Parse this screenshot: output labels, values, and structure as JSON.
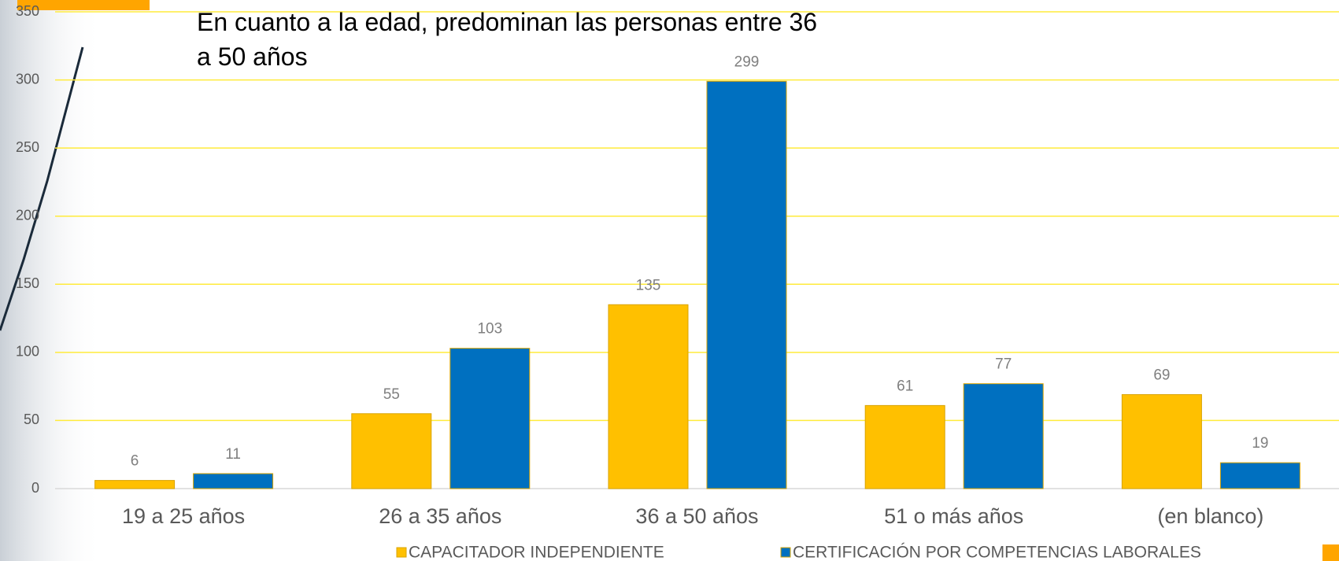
{
  "chart_data": {
    "type": "bar",
    "title": "En cuanto a la edad, predominan las personas entre 36 a 50 años",
    "categories": [
      "19 a 25 años",
      "26 a 35 años",
      "36 a 50 años",
      "51 o más años",
      "(en blanco)"
    ],
    "series": [
      {
        "name": "CAPACITADOR INDEPENDIENTE",
        "color": "#FFC000",
        "values": [
          6,
          55,
          135,
          61,
          69
        ]
      },
      {
        "name": "CERTIFICACIÓN POR COMPETENCIAS LABORALES",
        "color": "#0070C0",
        "values": [
          11,
          103,
          299,
          77,
          19
        ]
      }
    ],
    "ylim": [
      0,
      350
    ],
    "yticks": [
      0,
      50,
      100,
      150,
      200,
      250,
      300,
      350
    ],
    "grid": true,
    "grid_color": "#FFEB3B"
  }
}
